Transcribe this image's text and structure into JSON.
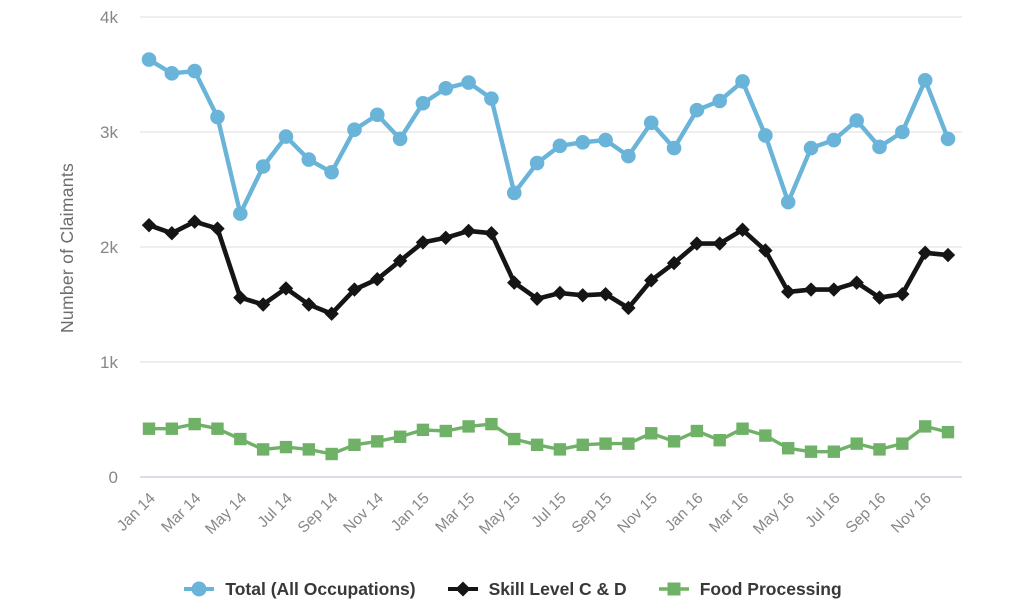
{
  "background_color": "#ffffff",
  "chart_data": {
    "type": "line",
    "title": "",
    "xlabel": "",
    "ylabel": "Number of Claimants",
    "ylim": [
      0,
      4000
    ],
    "y_ticks": [
      "0",
      "1k",
      "2k",
      "3k",
      "4k"
    ],
    "grid": true,
    "legend_position": "bottom",
    "x_tick_labels": [
      "Jan 14",
      "Mar 14",
      "May 14",
      "Jul 14",
      "Sep 14",
      "Nov 14",
      "Jan 15",
      "Mar 15",
      "May 15",
      "Jul 15",
      "Sep 15",
      "Nov 15",
      "Jan 16",
      "Mar 16",
      "May 16",
      "Jul 16",
      "Sep 16",
      "Nov 16"
    ],
    "categories": [
      "Jan 14",
      "Feb 14",
      "Mar 14",
      "Apr 14",
      "May 14",
      "Jun 14",
      "Jul 14",
      "Aug 14",
      "Sep 14",
      "Oct 14",
      "Nov 14",
      "Dec 14",
      "Jan 15",
      "Feb 15",
      "Mar 15",
      "Apr 15",
      "May 15",
      "Jun 15",
      "Jul 15",
      "Aug 15",
      "Sep 15",
      "Oct 15",
      "Nov 15",
      "Dec 15",
      "Jan 16",
      "Feb 16",
      "Mar 16",
      "Apr 16",
      "May 16",
      "Jun 16",
      "Jul 16",
      "Aug 16",
      "Sep 16",
      "Oct 16",
      "Nov 16",
      "Dec 16"
    ],
    "series": [
      {
        "name": "Total (All Occupations)",
        "color": "#6ab4da",
        "marker": "circle",
        "line_width": 4.4,
        "values": [
          3630,
          3510,
          3530,
          3130,
          2290,
          2700,
          2960,
          2760,
          2650,
          3020,
          3150,
          2940,
          3250,
          3380,
          3430,
          3290,
          2470,
          2730,
          2880,
          2910,
          2930,
          2790,
          3080,
          2860,
          3190,
          3270,
          3440,
          2970,
          2390,
          2860,
          2930,
          3100,
          2870,
          3000,
          3450,
          2940
        ]
      },
      {
        "name": "Skill Level C & D",
        "color": "#151515",
        "marker": "diamond",
        "line_width": 4.6,
        "values": [
          2190,
          2120,
          2220,
          2160,
          1560,
          1500,
          1640,
          1500,
          1420,
          1630,
          1720,
          1880,
          2040,
          2080,
          2140,
          2120,
          1690,
          1550,
          1600,
          1580,
          1590,
          1470,
          1710,
          1860,
          2030,
          2030,
          2150,
          1970,
          1610,
          1630,
          1630,
          1690,
          1560,
          1590,
          1950,
          1930
        ]
      },
      {
        "name": "Food Processing",
        "color": "#6fb167",
        "marker": "square",
        "line_width": 3.4,
        "values": [
          420,
          420,
          460,
          420,
          330,
          240,
          260,
          240,
          200,
          280,
          310,
          350,
          410,
          400,
          440,
          460,
          330,
          280,
          240,
          280,
          290,
          290,
          380,
          310,
          400,
          320,
          420,
          360,
          250,
          220,
          220,
          290,
          240,
          290,
          440,
          390
        ]
      }
    ],
    "colors": {
      "grid": "#e9e9e9",
      "axis_line": "#d9dde9",
      "tick_label": "#85878a"
    }
  }
}
